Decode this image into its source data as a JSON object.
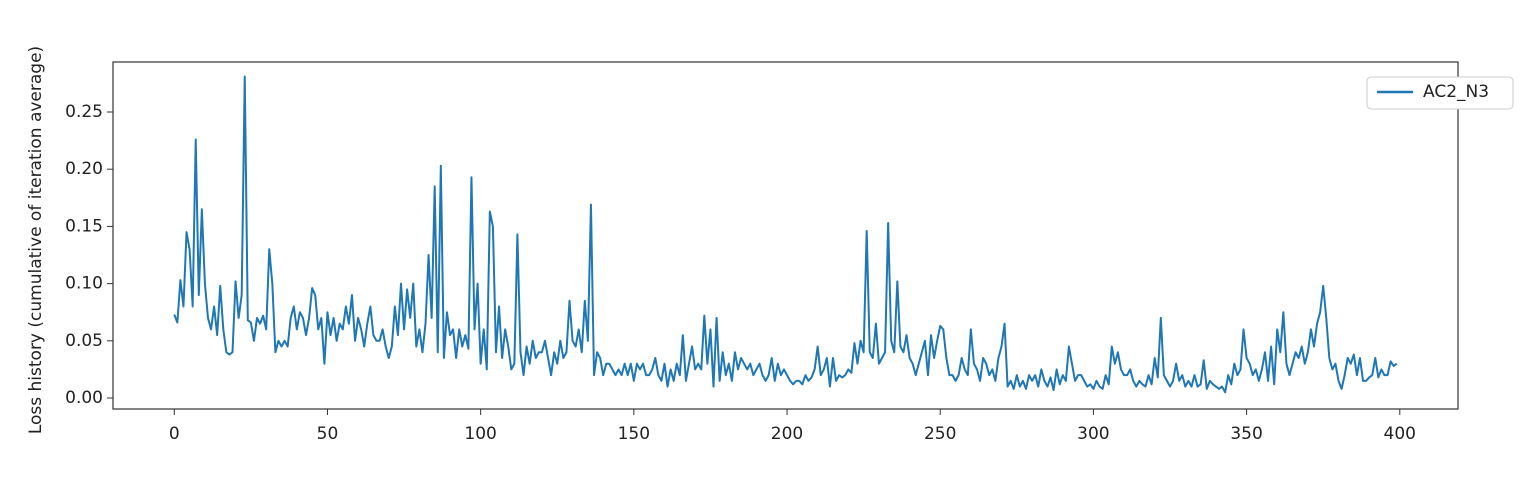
{
  "chart_data": {
    "type": "line",
    "y_label": "Loss history (cumulative of iteration average)",
    "x": [
      0,
      1,
      2,
      3,
      4,
      5,
      6,
      7,
      8,
      9,
      10,
      11,
      12,
      13,
      14,
      15,
      16,
      17,
      18,
      19,
      20,
      21,
      22,
      23,
      24,
      25,
      26,
      27,
      28,
      29,
      30,
      31,
      32,
      33,
      34,
      35,
      36,
      37,
      38,
      39,
      40,
      41,
      42,
      43,
      44,
      45,
      46,
      47,
      48,
      49,
      50,
      51,
      52,
      53,
      54,
      55,
      56,
      57,
      58,
      59,
      60,
      61,
      62,
      63,
      64,
      65,
      66,
      67,
      68,
      69,
      70,
      71,
      72,
      73,
      74,
      75,
      76,
      77,
      78,
      79,
      80,
      81,
      82,
      83,
      84,
      85,
      86,
      87,
      88,
      89,
      90,
      91,
      92,
      93,
      94,
      95,
      96,
      97,
      98,
      99,
      100,
      101,
      102,
      103,
      104,
      105,
      106,
      107,
      108,
      109,
      110,
      111,
      112,
      113,
      114,
      115,
      116,
      117,
      118,
      119,
      120,
      121,
      122,
      123,
      124,
      125,
      126,
      127,
      128,
      129,
      130,
      131,
      132,
      133,
      134,
      135,
      136,
      137,
      138,
      139,
      140,
      141,
      142,
      143,
      144,
      145,
      146,
      147,
      148,
      149,
      150,
      151,
      152,
      153,
      154,
      155,
      156,
      157,
      158,
      159,
      160,
      161,
      162,
      163,
      164,
      165,
      166,
      167,
      168,
      169,
      170,
      171,
      172,
      173,
      174,
      175,
      176,
      177,
      178,
      179,
      180,
      181,
      182,
      183,
      184,
      185,
      186,
      187,
      188,
      189,
      190,
      191,
      192,
      193,
      194,
      195,
      196,
      197,
      198,
      199,
      200,
      201,
      202,
      203,
      204,
      205,
      206,
      207,
      208,
      209,
      210,
      211,
      212,
      213,
      214,
      215,
      216,
      217,
      218,
      219,
      220,
      221,
      222,
      223,
      224,
      225,
      226,
      227,
      228,
      229,
      230,
      231,
      232,
      233,
      234,
      235,
      236,
      237,
      238,
      239,
      240,
      241,
      242,
      243,
      244,
      245,
      246,
      247,
      248,
      249,
      250,
      251,
      252,
      253,
      254,
      255,
      256,
      257,
      258,
      259,
      260,
      261,
      262,
      263,
      264,
      265,
      266,
      267,
      268,
      269,
      270,
      271,
      272,
      273,
      274,
      275,
      276,
      277,
      278,
      279,
      280,
      281,
      282,
      283,
      284,
      285,
      286,
      287,
      288,
      289,
      290,
      291,
      292,
      293,
      294,
      295,
      296,
      297,
      298,
      299,
      300,
      301,
      302,
      303,
      304,
      305,
      306,
      307,
      308,
      309,
      310,
      311,
      312,
      313,
      314,
      315,
      316,
      317,
      318,
      319,
      320,
      321,
      322,
      323,
      324,
      325,
      326,
      327,
      328,
      329,
      330,
      331,
      332,
      333,
      334,
      335,
      336,
      337,
      338,
      339,
      340,
      341,
      342,
      343,
      344,
      345,
      346,
      347,
      348,
      349,
      350,
      351,
      352,
      353,
      354,
      355,
      356,
      357,
      358,
      359,
      360,
      361,
      362,
      363,
      364,
      365,
      366,
      367,
      368,
      369,
      370,
      371,
      372,
      373,
      374,
      375,
      376,
      377,
      378,
      379,
      380,
      381,
      382,
      383,
      384,
      385,
      386,
      387,
      388,
      389,
      390,
      391,
      392,
      393,
      394,
      395,
      396,
      397,
      398,
      399
    ],
    "series": [
      {
        "name": "AC2_N3",
        "color": "#1f77b4",
        "values": [
          0.073,
          0.066,
          0.103,
          0.08,
          0.145,
          0.13,
          0.08,
          0.226,
          0.09,
          0.165,
          0.1,
          0.07,
          0.06,
          0.08,
          0.055,
          0.098,
          0.06,
          0.04,
          0.038,
          0.04,
          0.102,
          0.07,
          0.09,
          0.281,
          0.068,
          0.066,
          0.05,
          0.07,
          0.065,
          0.072,
          0.06,
          0.13,
          0.1,
          0.04,
          0.05,
          0.045,
          0.05,
          0.045,
          0.07,
          0.08,
          0.06,
          0.075,
          0.07,
          0.055,
          0.07,
          0.096,
          0.09,
          0.06,
          0.07,
          0.03,
          0.075,
          0.055,
          0.07,
          0.05,
          0.065,
          0.06,
          0.08,
          0.065,
          0.09,
          0.05,
          0.07,
          0.06,
          0.045,
          0.065,
          0.08,
          0.055,
          0.05,
          0.05,
          0.06,
          0.045,
          0.035,
          0.045,
          0.08,
          0.055,
          0.1,
          0.06,
          0.095,
          0.07,
          0.1,
          0.045,
          0.06,
          0.04,
          0.065,
          0.125,
          0.07,
          0.185,
          0.04,
          0.203,
          0.035,
          0.075,
          0.055,
          0.06,
          0.035,
          0.06,
          0.045,
          0.055,
          0.043,
          0.193,
          0.06,
          0.1,
          0.03,
          0.06,
          0.025,
          0.163,
          0.15,
          0.04,
          0.08,
          0.035,
          0.06,
          0.045,
          0.025,
          0.03,
          0.143,
          0.04,
          0.02,
          0.045,
          0.03,
          0.05,
          0.035,
          0.04,
          0.04,
          0.05,
          0.035,
          0.02,
          0.04,
          0.03,
          0.05,
          0.035,
          0.04,
          0.085,
          0.05,
          0.045,
          0.06,
          0.04,
          0.085,
          0.05,
          0.169,
          0.02,
          0.04,
          0.035,
          0.02,
          0.03,
          0.03,
          0.025,
          0.02,
          0.025,
          0.02,
          0.03,
          0.02,
          0.03,
          0.015,
          0.03,
          0.025,
          0.03,
          0.02,
          0.02,
          0.025,
          0.035,
          0.02,
          0.015,
          0.03,
          0.01,
          0.025,
          0.015,
          0.03,
          0.02,
          0.055,
          0.015,
          0.03,
          0.045,
          0.025,
          0.03,
          0.025,
          0.072,
          0.03,
          0.06,
          0.01,
          0.07,
          0.015,
          0.04,
          0.02,
          0.03,
          0.015,
          0.04,
          0.025,
          0.035,
          0.03,
          0.025,
          0.03,
          0.02,
          0.025,
          0.03,
          0.02,
          0.015,
          0.02,
          0.035,
          0.015,
          0.03,
          0.02,
          0.025,
          0.02,
          0.015,
          0.012,
          0.015,
          0.015,
          0.012,
          0.02,
          0.015,
          0.018,
          0.025,
          0.045,
          0.02,
          0.025,
          0.035,
          0.01,
          0.035,
          0.015,
          0.02,
          0.018,
          0.02,
          0.025,
          0.022,
          0.048,
          0.03,
          0.05,
          0.04,
          0.146,
          0.04,
          0.035,
          0.065,
          0.03,
          0.035,
          0.04,
          0.153,
          0.05,
          0.04,
          0.102,
          0.045,
          0.04,
          0.055,
          0.035,
          0.03,
          0.02,
          0.03,
          0.04,
          0.05,
          0.02,
          0.055,
          0.035,
          0.05,
          0.063,
          0.06,
          0.035,
          0.02,
          0.02,
          0.015,
          0.02,
          0.035,
          0.025,
          0.02,
          0.06,
          0.03,
          0.025,
          0.015,
          0.035,
          0.03,
          0.02,
          0.025,
          0.015,
          0.035,
          0.045,
          0.065,
          0.01,
          0.015,
          0.008,
          0.02,
          0.01,
          0.015,
          0.008,
          0.02,
          0.015,
          0.02,
          0.01,
          0.025,
          0.015,
          0.01,
          0.018,
          0.007,
          0.025,
          0.012,
          0.02,
          0.015,
          0.045,
          0.03,
          0.015,
          0.02,
          0.02,
          0.015,
          0.01,
          0.012,
          0.008,
          0.015,
          0.01,
          0.008,
          0.02,
          0.012,
          0.045,
          0.03,
          0.04,
          0.025,
          0.02,
          0.02,
          0.025,
          0.015,
          0.01,
          0.015,
          0.012,
          0.01,
          0.02,
          0.012,
          0.035,
          0.018,
          0.07,
          0.02,
          0.015,
          0.01,
          0.015,
          0.03,
          0.015,
          0.02,
          0.01,
          0.015,
          0.01,
          0.02,
          0.01,
          0.012,
          0.033,
          0.008,
          0.015,
          0.012,
          0.01,
          0.008,
          0.01,
          0.005,
          0.02,
          0.012,
          0.03,
          0.02,
          0.025,
          0.06,
          0.035,
          0.03,
          0.02,
          0.025,
          0.015,
          0.025,
          0.04,
          0.015,
          0.045,
          0.012,
          0.06,
          0.04,
          0.075,
          0.03,
          0.02,
          0.03,
          0.04,
          0.035,
          0.045,
          0.03,
          0.04,
          0.06,
          0.045,
          0.065,
          0.075,
          0.098,
          0.07,
          0.035,
          0.025,
          0.03,
          0.015,
          0.008,
          0.02,
          0.035,
          0.03,
          0.038,
          0.02,
          0.035,
          0.015,
          0.015,
          0.018,
          0.02,
          0.035,
          0.018,
          0.025,
          0.02,
          0.02,
          0.032,
          0.028,
          0.03
        ]
      }
    ],
    "xlim": [
      -20,
      419
    ],
    "ylim": [
      -0.0096,
      0.2937
    ],
    "xticks": [
      0,
      50,
      100,
      150,
      200,
      250,
      300,
      350,
      400
    ],
    "yticks": [
      {
        "value": 0,
        "label": "0.00"
      },
      {
        "value": 0.05,
        "label": "0.05"
      },
      {
        "value": 0.1,
        "label": "0.10"
      },
      {
        "value": 0.15,
        "label": "0.15"
      },
      {
        "value": 0.2,
        "label": "0.20"
      },
      {
        "value": 0.25,
        "label": "0.25"
      }
    ],
    "legend": "upper right",
    "grid": false
  }
}
